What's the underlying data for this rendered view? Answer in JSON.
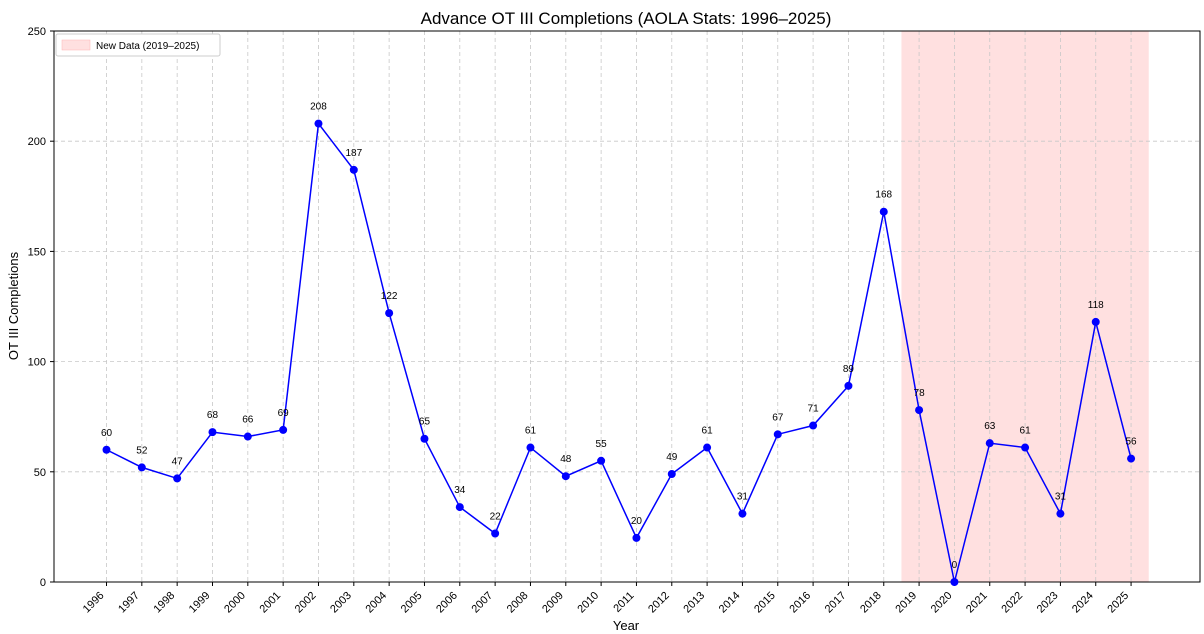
{
  "chart_data": {
    "type": "line",
    "title": "Advance OT III Completions (AOLA Stats: 1996–2025)",
    "xlabel": "Year",
    "ylabel": "OT III Completions",
    "ylim": [
      0,
      250
    ],
    "yticks": [
      0,
      50,
      100,
      150,
      200,
      250
    ],
    "grid": true,
    "legend_position": "top-left",
    "highlight": {
      "label": "New Data (2019–2025)",
      "from": "2019",
      "to": "2025",
      "color": "#ffe0e0"
    },
    "line_color": "#0000ff",
    "x": [
      "1996",
      "1997",
      "1998",
      "1999",
      "2000",
      "2001",
      "2002",
      "2003",
      "2004",
      "2005",
      "2006",
      "2007",
      "2008",
      "2009",
      "2010",
      "2011",
      "2012",
      "2013",
      "2014",
      "2015",
      "2016",
      "2017",
      "2018",
      "2019",
      "2020",
      "2021",
      "2022",
      "2023",
      "2024",
      "2025"
    ],
    "values": [
      60,
      52,
      47,
      68,
      66,
      69,
      208,
      187,
      122,
      65,
      34,
      22,
      61,
      48,
      55,
      20,
      49,
      61,
      31,
      67,
      71,
      89,
      168,
      78,
      0,
      63,
      61,
      31,
      118,
      56
    ],
    "data_labels": [
      "60",
      "52",
      "47",
      "68",
      "66",
      "69",
      "208",
      "187",
      "122",
      "65",
      "34",
      "22",
      "61",
      "48",
      "55",
      "20",
      "49",
      "61",
      "31",
      "67",
      "71",
      "89",
      "168",
      "78",
      "0",
      "63",
      "61",
      "31",
      "118",
      "56"
    ]
  }
}
